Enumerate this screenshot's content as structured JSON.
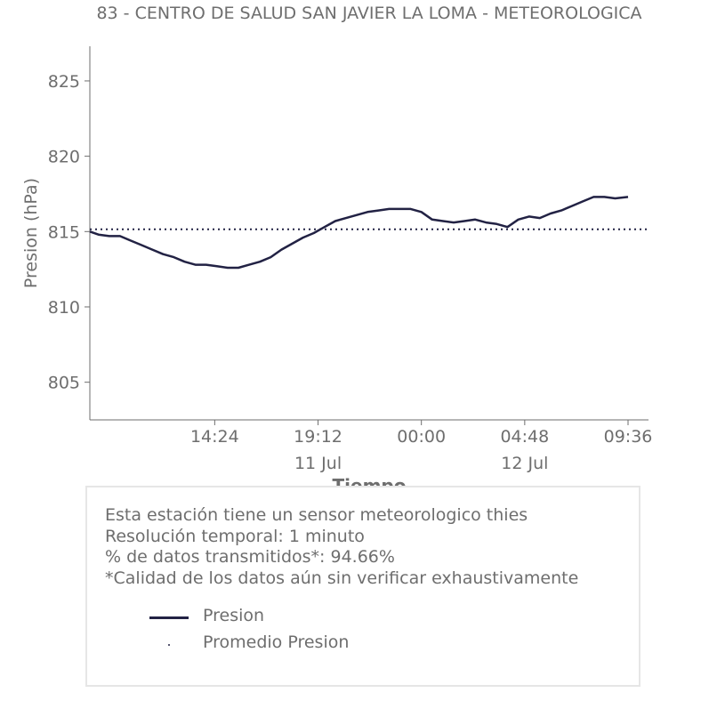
{
  "chart_data": {
    "type": "line",
    "title": "83 - CENTRO DE SALUD SAN JAVIER LA LOMA - METEOROLOGICA",
    "xlabel": "Tiempo",
    "ylabel": "Presion (hPa)",
    "ylim": [
      802.5,
      827.3
    ],
    "xlim": [
      "2023-07-11 08:36",
      "2023-07-12 10:33"
    ],
    "x_ticks": [
      {
        "value": "2023-07-11 14:24",
        "label": "14:24",
        "sublabel": ""
      },
      {
        "value": "2023-07-11 19:12",
        "label": "19:12",
        "sublabel": "11 Jul"
      },
      {
        "value": "2023-07-12 00:00",
        "label": "00:00",
        "sublabel": ""
      },
      {
        "value": "2023-07-12 04:48",
        "label": "04:48",
        "sublabel": "12 Jul"
      },
      {
        "value": "2023-07-12 09:36",
        "label": "09:36",
        "sublabel": ""
      }
    ],
    "y_ticks": [
      805,
      810,
      815,
      820,
      825
    ],
    "grid": false,
    "series": [
      {
        "name": "Presion",
        "color": "#222244",
        "x": [
          "2023-07-11 08:36",
          "2023-07-11 09:00",
          "2023-07-11 09:30",
          "2023-07-11 10:00",
          "2023-07-11 10:30",
          "2023-07-11 11:00",
          "2023-07-11 11:30",
          "2023-07-11 12:00",
          "2023-07-11 12:30",
          "2023-07-11 13:00",
          "2023-07-11 13:30",
          "2023-07-11 14:00",
          "2023-07-11 14:30",
          "2023-07-11 15:00",
          "2023-07-11 15:30",
          "2023-07-11 16:00",
          "2023-07-11 16:30",
          "2023-07-11 17:00",
          "2023-07-11 17:30",
          "2023-07-11 18:00",
          "2023-07-11 18:30",
          "2023-07-11 19:00",
          "2023-07-11 19:30",
          "2023-07-11 20:00",
          "2023-07-11 20:30",
          "2023-07-11 21:00",
          "2023-07-11 21:30",
          "2023-07-11 22:00",
          "2023-07-11 22:30",
          "2023-07-11 23:00",
          "2023-07-11 23:30",
          "2023-07-12 00:00",
          "2023-07-12 00:30",
          "2023-07-12 01:00",
          "2023-07-12 01:30",
          "2023-07-12 02:00",
          "2023-07-12 02:30",
          "2023-07-12 03:00",
          "2023-07-12 03:30",
          "2023-07-12 04:00",
          "2023-07-12 04:30",
          "2023-07-12 05:00",
          "2023-07-12 05:30",
          "2023-07-12 06:00",
          "2023-07-12 06:30",
          "2023-07-12 07:00",
          "2023-07-12 07:30",
          "2023-07-12 08:00",
          "2023-07-12 08:30",
          "2023-07-12 09:00",
          "2023-07-12 09:36"
        ],
        "values": [
          815.0,
          814.8,
          814.7,
          814.7,
          814.4,
          814.1,
          813.8,
          813.5,
          813.3,
          813.0,
          812.8,
          812.8,
          812.7,
          812.6,
          812.6,
          812.8,
          813.0,
          813.3,
          813.8,
          814.2,
          814.6,
          814.9,
          815.3,
          815.7,
          815.9,
          816.1,
          816.3,
          816.4,
          816.5,
          816.5,
          816.5,
          816.3,
          815.8,
          815.7,
          815.6,
          815.7,
          815.8,
          815.6,
          815.5,
          815.3,
          815.8,
          816.0,
          815.9,
          816.2,
          816.4,
          816.7,
          817.0,
          817.3,
          817.3,
          817.2,
          817.3
        ]
      },
      {
        "name": "Promedio Presion",
        "color": "#222244",
        "style": "dotted",
        "value": 815.15
      }
    ]
  },
  "info": {
    "lines": [
      "Esta estación tiene un sensor meteorologico thies",
      "Resolución temporal: 1 minuto",
      "% de datos transmitidos*: 94.66%",
      "*Calidad de los datos aún sin verificar exhaustivamente"
    ]
  },
  "legend": {
    "items": [
      {
        "label": "Presion",
        "kind": "line"
      },
      {
        "label": "Promedio Presion",
        "kind": "dot"
      }
    ]
  },
  "colors": {
    "line": "#222244",
    "text": "#6e6e6e",
    "axis": "#6e6e6e",
    "box_border": "#e6e6e6"
  }
}
